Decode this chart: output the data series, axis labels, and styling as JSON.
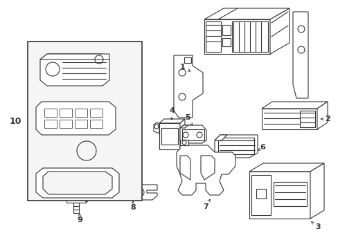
{
  "bg_color": "#ffffff",
  "line_color": "#333333",
  "line_width": 0.8,
  "fig_width": 4.89,
  "fig_height": 3.6,
  "dpi": 100
}
